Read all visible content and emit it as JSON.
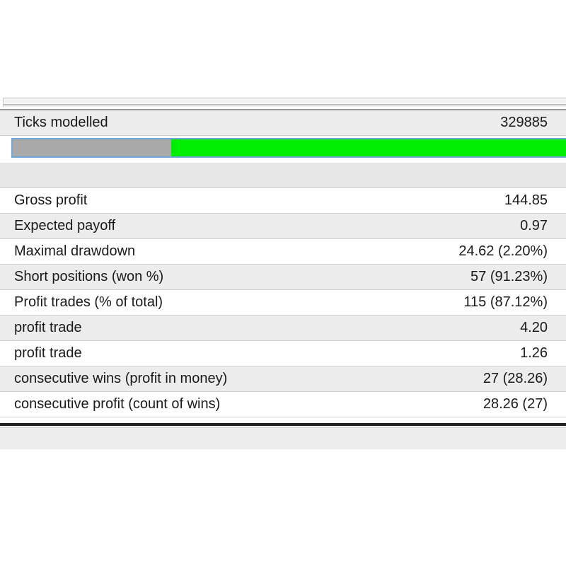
{
  "report": {
    "ticks": {
      "label": "Ticks modelled",
      "value": "329885"
    },
    "modelling_quality_fraction": 0.285,
    "rows": [
      {
        "label": "Gross profit",
        "value": "144.85"
      },
      {
        "label": "Expected payoff",
        "value": "0.97"
      },
      {
        "label": "Maximal drawdown",
        "value": "24.62 (2.20%)"
      },
      {
        "label": "Short positions (won %)",
        "value": "57 (91.23%)"
      },
      {
        "label": "Profit trades (% of total)",
        "value": "115 (87.12%)"
      },
      {
        "label": "profit trade",
        "value": "4.20"
      },
      {
        "label": "profit trade",
        "value": "1.26"
      },
      {
        "label": "consecutive wins (profit in money)",
        "value": "27 (28.26)"
      },
      {
        "label": "consecutive profit (count of wins)",
        "value": "28.26 (27)"
      }
    ]
  },
  "colors": {
    "progress_filled": "#a9a9a9",
    "progress_remaining": "#00ee00",
    "progress_border": "#6ea6d8",
    "row_alt": "#ececec"
  }
}
